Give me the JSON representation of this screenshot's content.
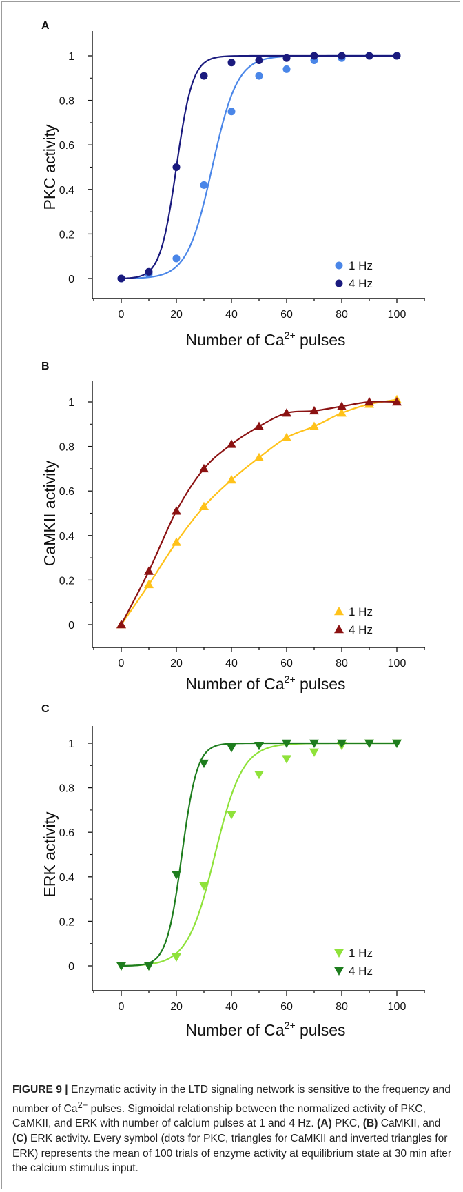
{
  "chart_data": [
    {
      "panel": "A",
      "type": "scatter",
      "xlabel": "Number of Ca",
      "xlabel_sup": "2+",
      "xlabel_suffix": " pulses",
      "ylabel": "PKC activity",
      "xlim": [
        0,
        100
      ],
      "ylim": [
        0,
        1
      ],
      "xticks": [
        0,
        20,
        40,
        60,
        80,
        100
      ],
      "yticks": [
        0,
        0.2,
        0.4,
        0.6,
        0.8,
        1
      ],
      "marker": "circle",
      "legend_position": "bottom-right",
      "series": [
        {
          "name": "1 Hz",
          "color": "#4a86e8",
          "fit_midpoint": 33,
          "fit_slope": 0.22,
          "x": [
            0,
            10,
            20,
            30,
            40,
            50,
            60,
            70,
            80,
            90,
            100
          ],
          "y": [
            0,
            0.02,
            0.09,
            0.42,
            0.75,
            0.91,
            0.94,
            0.98,
            0.99,
            1.0,
            1.0
          ]
        },
        {
          "name": "4 Hz",
          "color": "#1a1a7e",
          "fit_midpoint": 20,
          "fit_slope": 0.34,
          "x": [
            0,
            10,
            20,
            30,
            40,
            50,
            60,
            70,
            80,
            90,
            100
          ],
          "y": [
            0,
            0.03,
            0.5,
            0.91,
            0.97,
            0.98,
            0.99,
            1.0,
            1.0,
            1.0,
            1.0
          ]
        }
      ]
    },
    {
      "panel": "B",
      "type": "scatter",
      "xlabel": "Number of Ca",
      "xlabel_sup": "2+",
      "xlabel_suffix": " pulses",
      "ylabel": "CaMKII activity",
      "xlim": [
        0,
        100
      ],
      "ylim": [
        0,
        1
      ],
      "xticks": [
        0,
        20,
        40,
        60,
        80,
        100
      ],
      "yticks": [
        0,
        0.2,
        0.4,
        0.6,
        0.8,
        1
      ],
      "marker": "triangle",
      "legend_position": "bottom-right",
      "series": [
        {
          "name": "1 Hz",
          "color": "#ffc21a",
          "fit_k": 1.6,
          "fit_n": 1.8,
          "x": [
            0,
            10,
            20,
            30,
            40,
            50,
            60,
            70,
            80,
            90,
            100
          ],
          "y": [
            0,
            0.18,
            0.37,
            0.53,
            0.65,
            0.75,
            0.84,
            0.89,
            0.95,
            0.99,
            1.01
          ]
        },
        {
          "name": "4 Hz",
          "color": "#8b1212",
          "fit_k": 1.25,
          "fit_n": 2.0,
          "x": [
            0,
            10,
            20,
            30,
            40,
            50,
            60,
            70,
            80,
            90,
            100
          ],
          "y": [
            0,
            0.24,
            0.51,
            0.7,
            0.81,
            0.89,
            0.95,
            0.96,
            0.98,
            1.0,
            1.0
          ]
        }
      ]
    },
    {
      "panel": "C",
      "type": "scatter",
      "xlabel": "Number of Ca",
      "xlabel_sup": "2+",
      "xlabel_suffix": " pulses",
      "ylabel": "ERK activity",
      "xlim": [
        0,
        100
      ],
      "ylim": [
        0,
        1
      ],
      "xticks": [
        0,
        20,
        40,
        60,
        80,
        100
      ],
      "yticks": [
        0,
        0.2,
        0.4,
        0.6,
        0.8,
        1
      ],
      "marker": "triangle-down",
      "legend_position": "bottom-right",
      "series": [
        {
          "name": "1 Hz",
          "color": "#8fe23a",
          "fit_midpoint": 34,
          "fit_slope": 0.2,
          "x": [
            0,
            10,
            20,
            30,
            40,
            50,
            60,
            70,
            80,
            90,
            100
          ],
          "y": [
            0,
            0,
            0.04,
            0.36,
            0.68,
            0.86,
            0.93,
            0.96,
            0.99,
            1.0,
            1.0
          ]
        },
        {
          "name": "4 Hz",
          "color": "#1e7d1e",
          "fit_midpoint": 22,
          "fit_slope": 0.36,
          "x": [
            0,
            10,
            20,
            30,
            40,
            50,
            60,
            70,
            80,
            90,
            100
          ],
          "y": [
            0,
            0,
            0.41,
            0.91,
            0.98,
            0.99,
            1.0,
            1.0,
            1.0,
            1.0,
            1.0
          ]
        }
      ]
    }
  ],
  "caption": {
    "label": "FIGURE 9",
    "separator": " | ",
    "text1": "Enzymatic activity in the LTD signaling network is sensitive to the frequency and number of Ca",
    "sup": "2+",
    "text2": " pulses. Sigmoidal relationship between the normalized activity of PKC, CaMKII, and ERK with number of calcium pulses at 1 and 4 Hz. ",
    "tagA": "(A)",
    "textA": " PKC, ",
    "tagB": "(B)",
    "textB": " CaMKII, and ",
    "tagC": "(C)",
    "textC": " ERK activity. Every symbol (dots for PKC, triangles for CaMKII and inverted triangles for ERK) represents the mean of 100 trials of enzyme activity at equilibrium state at 30 min after the calcium stimulus input."
  }
}
